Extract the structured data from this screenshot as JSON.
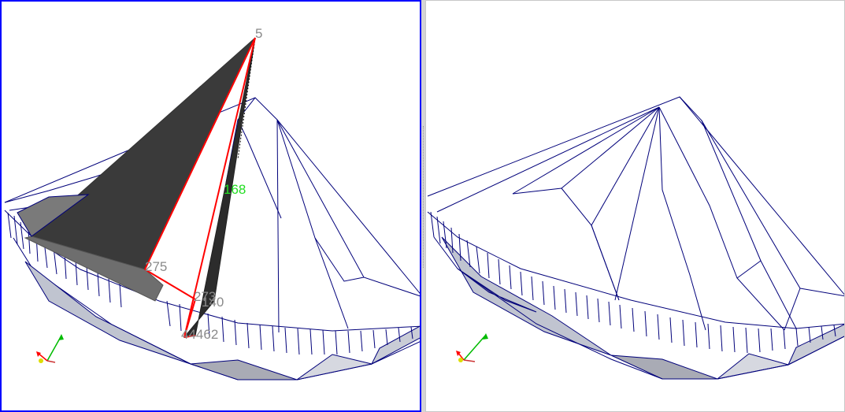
{
  "viewports": {
    "left": {
      "active": true,
      "vertex_labels": {
        "apex": "5",
        "v168": "168",
        "v275": "275",
        "v273": "273",
        "v140": "140",
        "bottom_cluster": "44462"
      },
      "highlight_color": "#22dd22",
      "selection_edge_color": "#ff0000"
    },
    "right": {
      "active": false
    }
  },
  "colors": {
    "mesh_edge": "#00007a",
    "face_dark": "#3a3a3a",
    "face_mid": "#6e6e6e",
    "face_light": "#c0c4d0",
    "active_border": "#0000ff"
  },
  "axis_triad": {
    "x_color": "#ff0000",
    "y_color": "#00bb00",
    "z_color": "#dddd00"
  }
}
